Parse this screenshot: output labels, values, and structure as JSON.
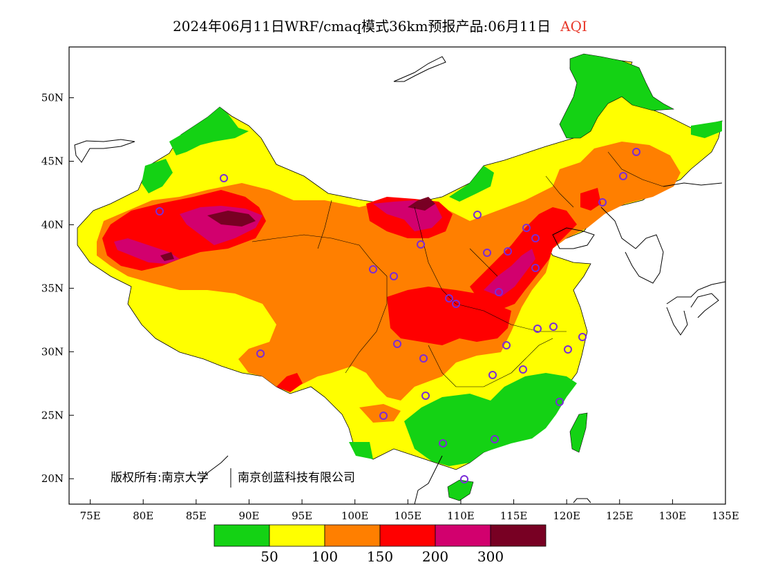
{
  "title": {
    "main": "2024年06月11日WRF/cmaq模式36km预报产品:06月11日",
    "product": "AQI"
  },
  "axes": {
    "x_ticks": [
      "75E",
      "80E",
      "85E",
      "90E",
      "95E",
      "100E",
      "105E",
      "110E",
      "115E",
      "120E",
      "125E",
      "130E",
      "135E"
    ],
    "y_ticks": [
      "20N",
      "25N",
      "30N",
      "35N",
      "40N",
      "45N",
      "50N"
    ],
    "lon_range": [
      73,
      135
    ],
    "lat_range": [
      18,
      54
    ]
  },
  "copyright": {
    "left": "版权所有:南京大学",
    "right": "南京创蓝科技有限公司"
  },
  "legend": {
    "colors": [
      "#14d214",
      "#ffff00",
      "#ff7f00",
      "#ff0000",
      "#d2006e",
      "#780023"
    ],
    "labels": [
      "50",
      "100",
      "150",
      "200",
      "300"
    ]
  },
  "region_colors": {
    "background": "#ffffff",
    "outline": "#000000",
    "station_marker": "#7a2bd8"
  }
}
